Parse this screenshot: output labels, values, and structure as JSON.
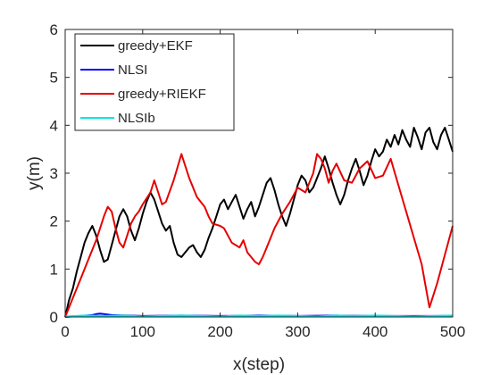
{
  "chart_data": {
    "type": "line",
    "title": "",
    "xlabel": "x(step)",
    "ylabel": "y(m)",
    "xlim": [
      0,
      500
    ],
    "ylim": [
      0,
      6
    ],
    "xticks": [
      0,
      100,
      200,
      300,
      400,
      500
    ],
    "yticks": [
      0,
      1,
      2,
      3,
      4,
      5,
      6
    ],
    "grid": false,
    "legend_position": "top-left",
    "series": [
      {
        "name": "greedy+EKF",
        "color": "#000000",
        "x": [
          0,
          5,
          10,
          15,
          20,
          25,
          30,
          35,
          40,
          45,
          50,
          55,
          60,
          65,
          70,
          75,
          80,
          85,
          90,
          95,
          100,
          105,
          110,
          115,
          120,
          125,
          130,
          135,
          140,
          145,
          150,
          155,
          160,
          165,
          170,
          175,
          180,
          185,
          190,
          195,
          200,
          205,
          210,
          215,
          220,
          225,
          230,
          235,
          240,
          245,
          250,
          255,
          260,
          265,
          270,
          275,
          280,
          285,
          290,
          295,
          300,
          305,
          310,
          315,
          320,
          325,
          330,
          335,
          340,
          345,
          350,
          355,
          360,
          365,
          370,
          375,
          380,
          385,
          390,
          395,
          400,
          405,
          410,
          415,
          420,
          425,
          430,
          435,
          440,
          445,
          450,
          455,
          460,
          465,
          470,
          475,
          480,
          485,
          490,
          495,
          500
        ],
        "y": [
          0.0,
          0.35,
          0.6,
          0.95,
          1.25,
          1.55,
          1.75,
          1.9,
          1.7,
          1.4,
          1.15,
          1.2,
          1.5,
          1.8,
          2.1,
          2.25,
          2.1,
          1.8,
          1.6,
          1.85,
          2.15,
          2.4,
          2.6,
          2.45,
          2.2,
          1.95,
          1.8,
          1.9,
          1.55,
          1.3,
          1.25,
          1.35,
          1.45,
          1.5,
          1.35,
          1.25,
          1.4,
          1.65,
          1.85,
          2.1,
          2.35,
          2.45,
          2.25,
          2.4,
          2.55,
          2.3,
          2.05,
          2.25,
          2.4,
          2.1,
          2.3,
          2.55,
          2.8,
          2.9,
          2.65,
          2.35,
          2.1,
          1.9,
          2.15,
          2.45,
          2.75,
          2.95,
          2.85,
          2.6,
          2.7,
          2.9,
          3.1,
          3.35,
          3.1,
          2.8,
          2.55,
          2.35,
          2.55,
          2.85,
          3.1,
          3.3,
          3.05,
          2.75,
          2.95,
          3.25,
          3.5,
          3.35,
          3.45,
          3.7,
          3.55,
          3.8,
          3.6,
          3.9,
          3.7,
          3.55,
          3.95,
          3.75,
          3.5,
          3.85,
          3.95,
          3.65,
          3.5,
          3.8,
          3.95,
          3.7,
          3.45
        ]
      },
      {
        "name": "NLSI",
        "color": "#0000ff",
        "x": [
          0,
          20,
          35,
          40,
          45,
          50,
          60,
          80,
          100,
          150,
          200,
          250,
          300,
          350,
          400,
          450,
          500
        ],
        "y": [
          0.0,
          0.02,
          0.04,
          0.06,
          0.07,
          0.06,
          0.04,
          0.03,
          0.02,
          0.03,
          0.02,
          0.03,
          0.02,
          0.03,
          0.02,
          0.02,
          0.02
        ]
      },
      {
        "name": "greedy+RIEKF",
        "color": "#e60000",
        "x": [
          0,
          10,
          20,
          30,
          40,
          45,
          50,
          55,
          60,
          65,
          70,
          75,
          80,
          85,
          90,
          95,
          100,
          110,
          115,
          120,
          125,
          130,
          140,
          150,
          160,
          170,
          180,
          185,
          190,
          200,
          205,
          210,
          215,
          220,
          225,
          230,
          235,
          240,
          245,
          250,
          255,
          260,
          270,
          280,
          290,
          300,
          310,
          320,
          325,
          330,
          335,
          340,
          345,
          350,
          360,
          370,
          380,
          390,
          400,
          410,
          420,
          430,
          440,
          450,
          460,
          465,
          470,
          480,
          490,
          500
        ],
        "y": [
          0.0,
          0.4,
          0.8,
          1.2,
          1.6,
          1.85,
          2.1,
          2.3,
          2.2,
          1.85,
          1.55,
          1.45,
          1.7,
          1.95,
          2.1,
          2.2,
          2.35,
          2.6,
          2.85,
          2.6,
          2.35,
          2.4,
          2.85,
          3.4,
          2.9,
          2.5,
          2.3,
          2.1,
          1.95,
          1.9,
          1.85,
          1.7,
          1.55,
          1.5,
          1.45,
          1.6,
          1.35,
          1.25,
          1.15,
          1.1,
          1.25,
          1.45,
          1.85,
          2.15,
          2.4,
          2.7,
          2.6,
          3.0,
          3.4,
          3.3,
          3.1,
          2.8,
          3.05,
          3.2,
          2.85,
          2.8,
          3.1,
          3.25,
          2.9,
          2.95,
          3.3,
          2.75,
          2.2,
          1.65,
          1.1,
          0.65,
          0.2,
          0.7,
          1.3,
          1.9
        ]
      },
      {
        "name": "NLSIb",
        "color": "#00e6e6",
        "x": [
          0,
          25,
          50,
          75,
          100,
          125,
          150,
          175,
          200,
          225,
          250,
          275,
          300,
          325,
          350,
          375,
          400,
          425,
          450,
          475,
          500
        ],
        "y": [
          0.01,
          0.03,
          0.02,
          0.03,
          0.01,
          0.02,
          0.03,
          0.02,
          0.01,
          0.03,
          0.02,
          0.03,
          0.02,
          0.01,
          0.03,
          0.02,
          0.03,
          0.02,
          0.01,
          0.02,
          0.03
        ]
      }
    ]
  }
}
